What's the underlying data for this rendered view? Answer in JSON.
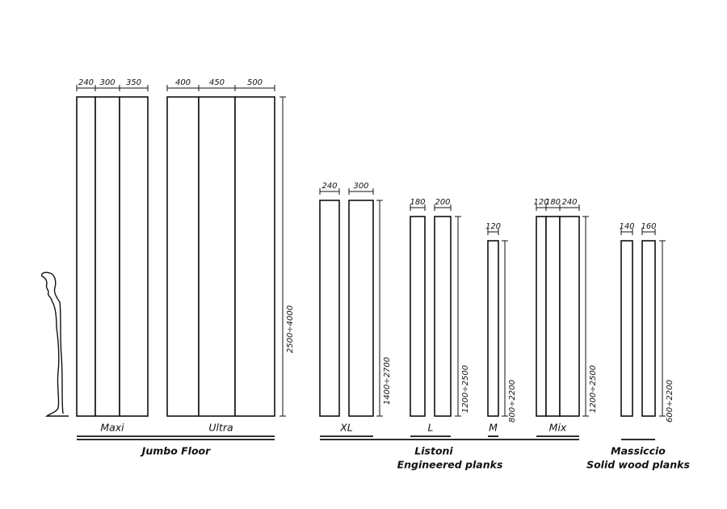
{
  "families": [
    {
      "title": "Jumbo Floor",
      "products": [
        {
          "name": "Maxi",
          "widths": [
            "240",
            "300",
            "350"
          ]
        },
        {
          "name": "Ultra",
          "widths": [
            "400",
            "450",
            "500"
          ],
          "length": "2500÷4000"
        }
      ]
    },
    {
      "title": "Listoni",
      "subtitle": "Engineered planks",
      "products": [
        {
          "name": "XL",
          "widths": [
            "240",
            "300"
          ],
          "length": "1400÷2700"
        },
        {
          "name": "L",
          "widths": [
            "180",
            "200"
          ],
          "length": "1200÷2500"
        },
        {
          "name": "M",
          "widths": [
            "120"
          ],
          "length": "800÷2200"
        },
        {
          "name": "Mix",
          "widths": [
            "120",
            "180",
            "240"
          ],
          "length": "1200÷2500"
        }
      ]
    },
    {
      "title": "Massiccio",
      "subtitle": "Solid wood planks",
      "products": [
        {
          "widths": [
            "140",
            "160"
          ],
          "length": "600÷2200"
        }
      ]
    }
  ]
}
